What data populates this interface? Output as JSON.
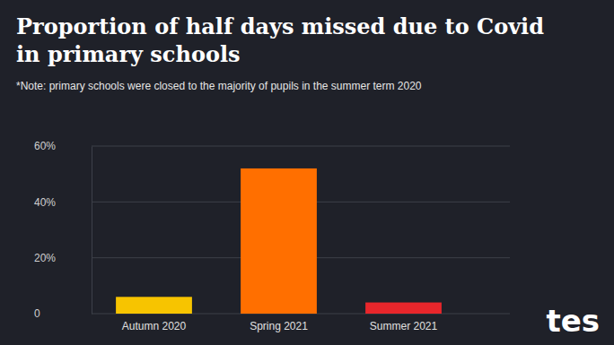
{
  "chart_data": {
    "type": "bar",
    "title": "Proportion of half days missed due to Covid in primary schools",
    "subtitle": "*Note: primary schools were closed to the majority of pupils in the summer term 2020",
    "source": "tes",
    "categories": [
      "Autumn 2020",
      "Spring 2021",
      "Summer 2021"
    ],
    "values": [
      6,
      52,
      4
    ],
    "colors": [
      "#f7c400",
      "#ff6f00",
      "#e8262b"
    ],
    "ylim": [
      0,
      60
    ],
    "yticks": [
      0,
      {
        "value": 20,
        "label": "20%"
      },
      {
        "value": 40,
        "label": "40%"
      },
      {
        "value": 60,
        "label": "60%"
      }
    ],
    "grid": true
  }
}
